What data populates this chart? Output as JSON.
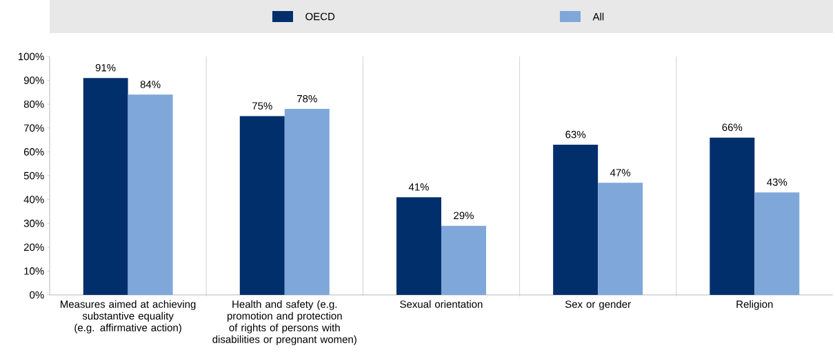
{
  "chart_data": {
    "type": "bar",
    "categories": [
      "Measures aimed at achieving substantive equality (e.g. affirmative action)",
      "Health and safety (e.g. promotion and protection of rights of persons with disabilities or pregnant women)",
      "Sexual orientation",
      "Sex or gender",
      "Religion"
    ],
    "series": [
      {
        "name": "OECD",
        "color": "#002f6c",
        "values": [
          91,
          75,
          41,
          63,
          66
        ],
        "value_labels": [
          "91%",
          "75%",
          "41%",
          "63%",
          "66%"
        ]
      },
      {
        "name": "All",
        "color": "#7fa7d9",
        "values": [
          84,
          78,
          29,
          47,
          43
        ],
        "value_labels": [
          "84%",
          "78%",
          "29%",
          "47%",
          "43%"
        ]
      }
    ],
    "ylim": [
      0,
      100
    ],
    "yticks": [
      {
        "value": 0,
        "label": "0%"
      },
      {
        "value": 10,
        "label": "10%"
      },
      {
        "value": 20,
        "label": "20%"
      },
      {
        "value": 30,
        "label": "30%"
      },
      {
        "value": 40,
        "label": "40%"
      },
      {
        "value": 50,
        "label": "50%"
      },
      {
        "value": 60,
        "label": "60%"
      },
      {
        "value": 70,
        "label": "70%"
      },
      {
        "value": 80,
        "label": "80%"
      },
      {
        "value": 90,
        "label": "90%"
      },
      {
        "value": 100,
        "label": "100%"
      }
    ],
    "grid": "x",
    "legend": "top"
  }
}
